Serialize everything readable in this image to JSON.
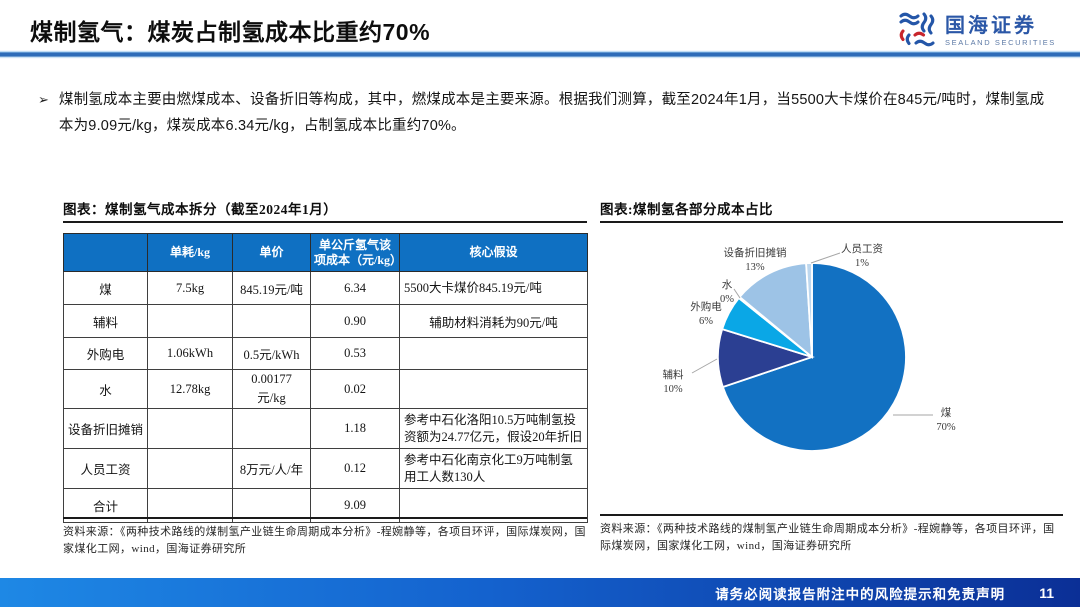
{
  "header": {
    "title": "煤制氢气：煤炭占制氢成本比重约70%"
  },
  "logo": {
    "name_cn": "国海证券",
    "name_en": "SEALAND SECURITIES"
  },
  "intro": {
    "bullet": "➢",
    "text": "煤制氢成本主要由燃煤成本、设备折旧等构成，其中，燃煤成本是主要来源。根据我们测算，截至2024年1月，当5500大卡煤价在845元/吨时，煤制氢成本为9.09元/kg，煤炭成本6.34元/kg，占制氢成本比重约70%。"
  },
  "figure_left": {
    "title": "图表：煤制氢气成本拆分（截至2024年1月）",
    "table": {
      "columns": [
        "",
        "单耗/kg",
        "单价",
        "单公斤氢气该项成本（元/kg）",
        "核心假设"
      ],
      "rows": [
        [
          "煤",
          "7.5kg",
          "845.19元/吨",
          "6.34",
          "5500大卡煤价845.19元/吨"
        ],
        [
          "辅料",
          "",
          "",
          "0.90",
          "辅助材料消耗为90元/吨"
        ],
        [
          "外购电",
          "1.06kWh",
          "0.5元/kWh",
          "0.53",
          ""
        ],
        [
          "水",
          "12.78kg",
          "0.00177元/kg",
          "0.02",
          ""
        ],
        [
          "设备折旧摊销",
          "",
          "",
          "1.18",
          "参考中石化洛阳10.5万吨制氢投资额为24.77亿元，假设20年折旧"
        ],
        [
          "人员工资",
          "",
          "8万元/人/年",
          "0.12",
          "参考中石化南京化工9万吨制氢用工人数130人"
        ],
        [
          "合计",
          "",
          "",
          "9.09",
          ""
        ]
      ]
    },
    "source": "资料来源：《两种技术路线的煤制氢产业链生命周期成本分析》-程婉静等，各项目环评，国际煤炭网，国家煤化工网，wind，国海证券研究所"
  },
  "figure_right": {
    "title": "图表:煤制氢各部分成本占比",
    "source": "资料来源：《两种技术路线的煤制氢产业链生命周期成本分析》-程婉静等，各项目环评，国际煤炭网，国家煤化工网，wind，国海证券研究所"
  },
  "chart_data": {
    "type": "pie",
    "title": "图表:煤制氢各部分成本占比",
    "categories": [
      "煤",
      "辅料",
      "外购电",
      "水",
      "设备折旧摊销",
      "人员工资"
    ],
    "values": [
      70,
      10,
      6,
      0,
      13,
      1
    ],
    "colors": [
      "#1271C2",
      "#2B3F92",
      "#0AA7E6",
      "#7FB2DE",
      "#9DC3E6",
      "#BDD7EE"
    ],
    "legend": "none",
    "label_style": "direct labels with leader lines, name + percent"
  },
  "footer": {
    "disclaimer": "请务必阅读报告附注中的风险提示和免责声明",
    "page": "11"
  }
}
